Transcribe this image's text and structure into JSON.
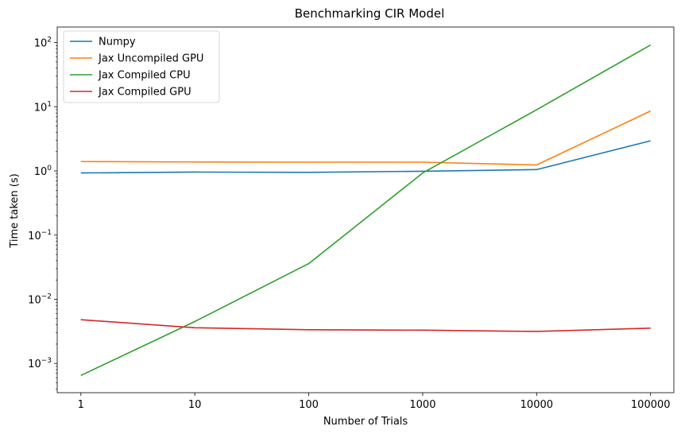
{
  "chart_data": {
    "type": "line",
    "title": "Benchmarking CIR Model",
    "xlabel": "Number of Trials",
    "ylabel": "Time taken (s)",
    "x_scale": "log",
    "y_scale": "log",
    "x": [
      1,
      10,
      100,
      1000,
      10000,
      100000
    ],
    "x_tick_labels": [
      "1",
      "10",
      "100",
      "1000",
      "10000",
      "100000"
    ],
    "y_ticks": [
      {
        "value": 0.001,
        "base": "10",
        "exp": "−3"
      },
      {
        "value": 0.01,
        "base": "10",
        "exp": "−2"
      },
      {
        "value": 0.1,
        "base": "10",
        "exp": "−1"
      },
      {
        "value": 1,
        "base": "10",
        "exp": "0"
      },
      {
        "value": 10,
        "base": "10",
        "exp": "1"
      },
      {
        "value": 100,
        "base": "10",
        "exp": "2"
      }
    ],
    "xlim": [
      0.62,
      160000
    ],
    "ylim": [
      0.00035,
      175
    ],
    "grid": false,
    "legend_position": "top-left",
    "series": [
      {
        "name": "Numpy",
        "color": "#1f77b4",
        "values": [
          0.93,
          0.96,
          0.95,
          0.99,
          1.05,
          2.95
        ]
      },
      {
        "name": "Jax Uncompiled GPU",
        "color": "#ff7f0e",
        "values": [
          1.4,
          1.38,
          1.37,
          1.37,
          1.24,
          8.6
        ]
      },
      {
        "name": "Jax Compiled CPU",
        "color": "#2ca02c",
        "values": [
          0.00065,
          0.0045,
          0.036,
          0.93,
          9.0,
          92.0
        ]
      },
      {
        "name": "Jax Compiled GPU",
        "color": "#d62728",
        "values": [
          0.0048,
          0.0036,
          0.00335,
          0.0033,
          0.00315,
          0.00355
        ]
      }
    ]
  }
}
